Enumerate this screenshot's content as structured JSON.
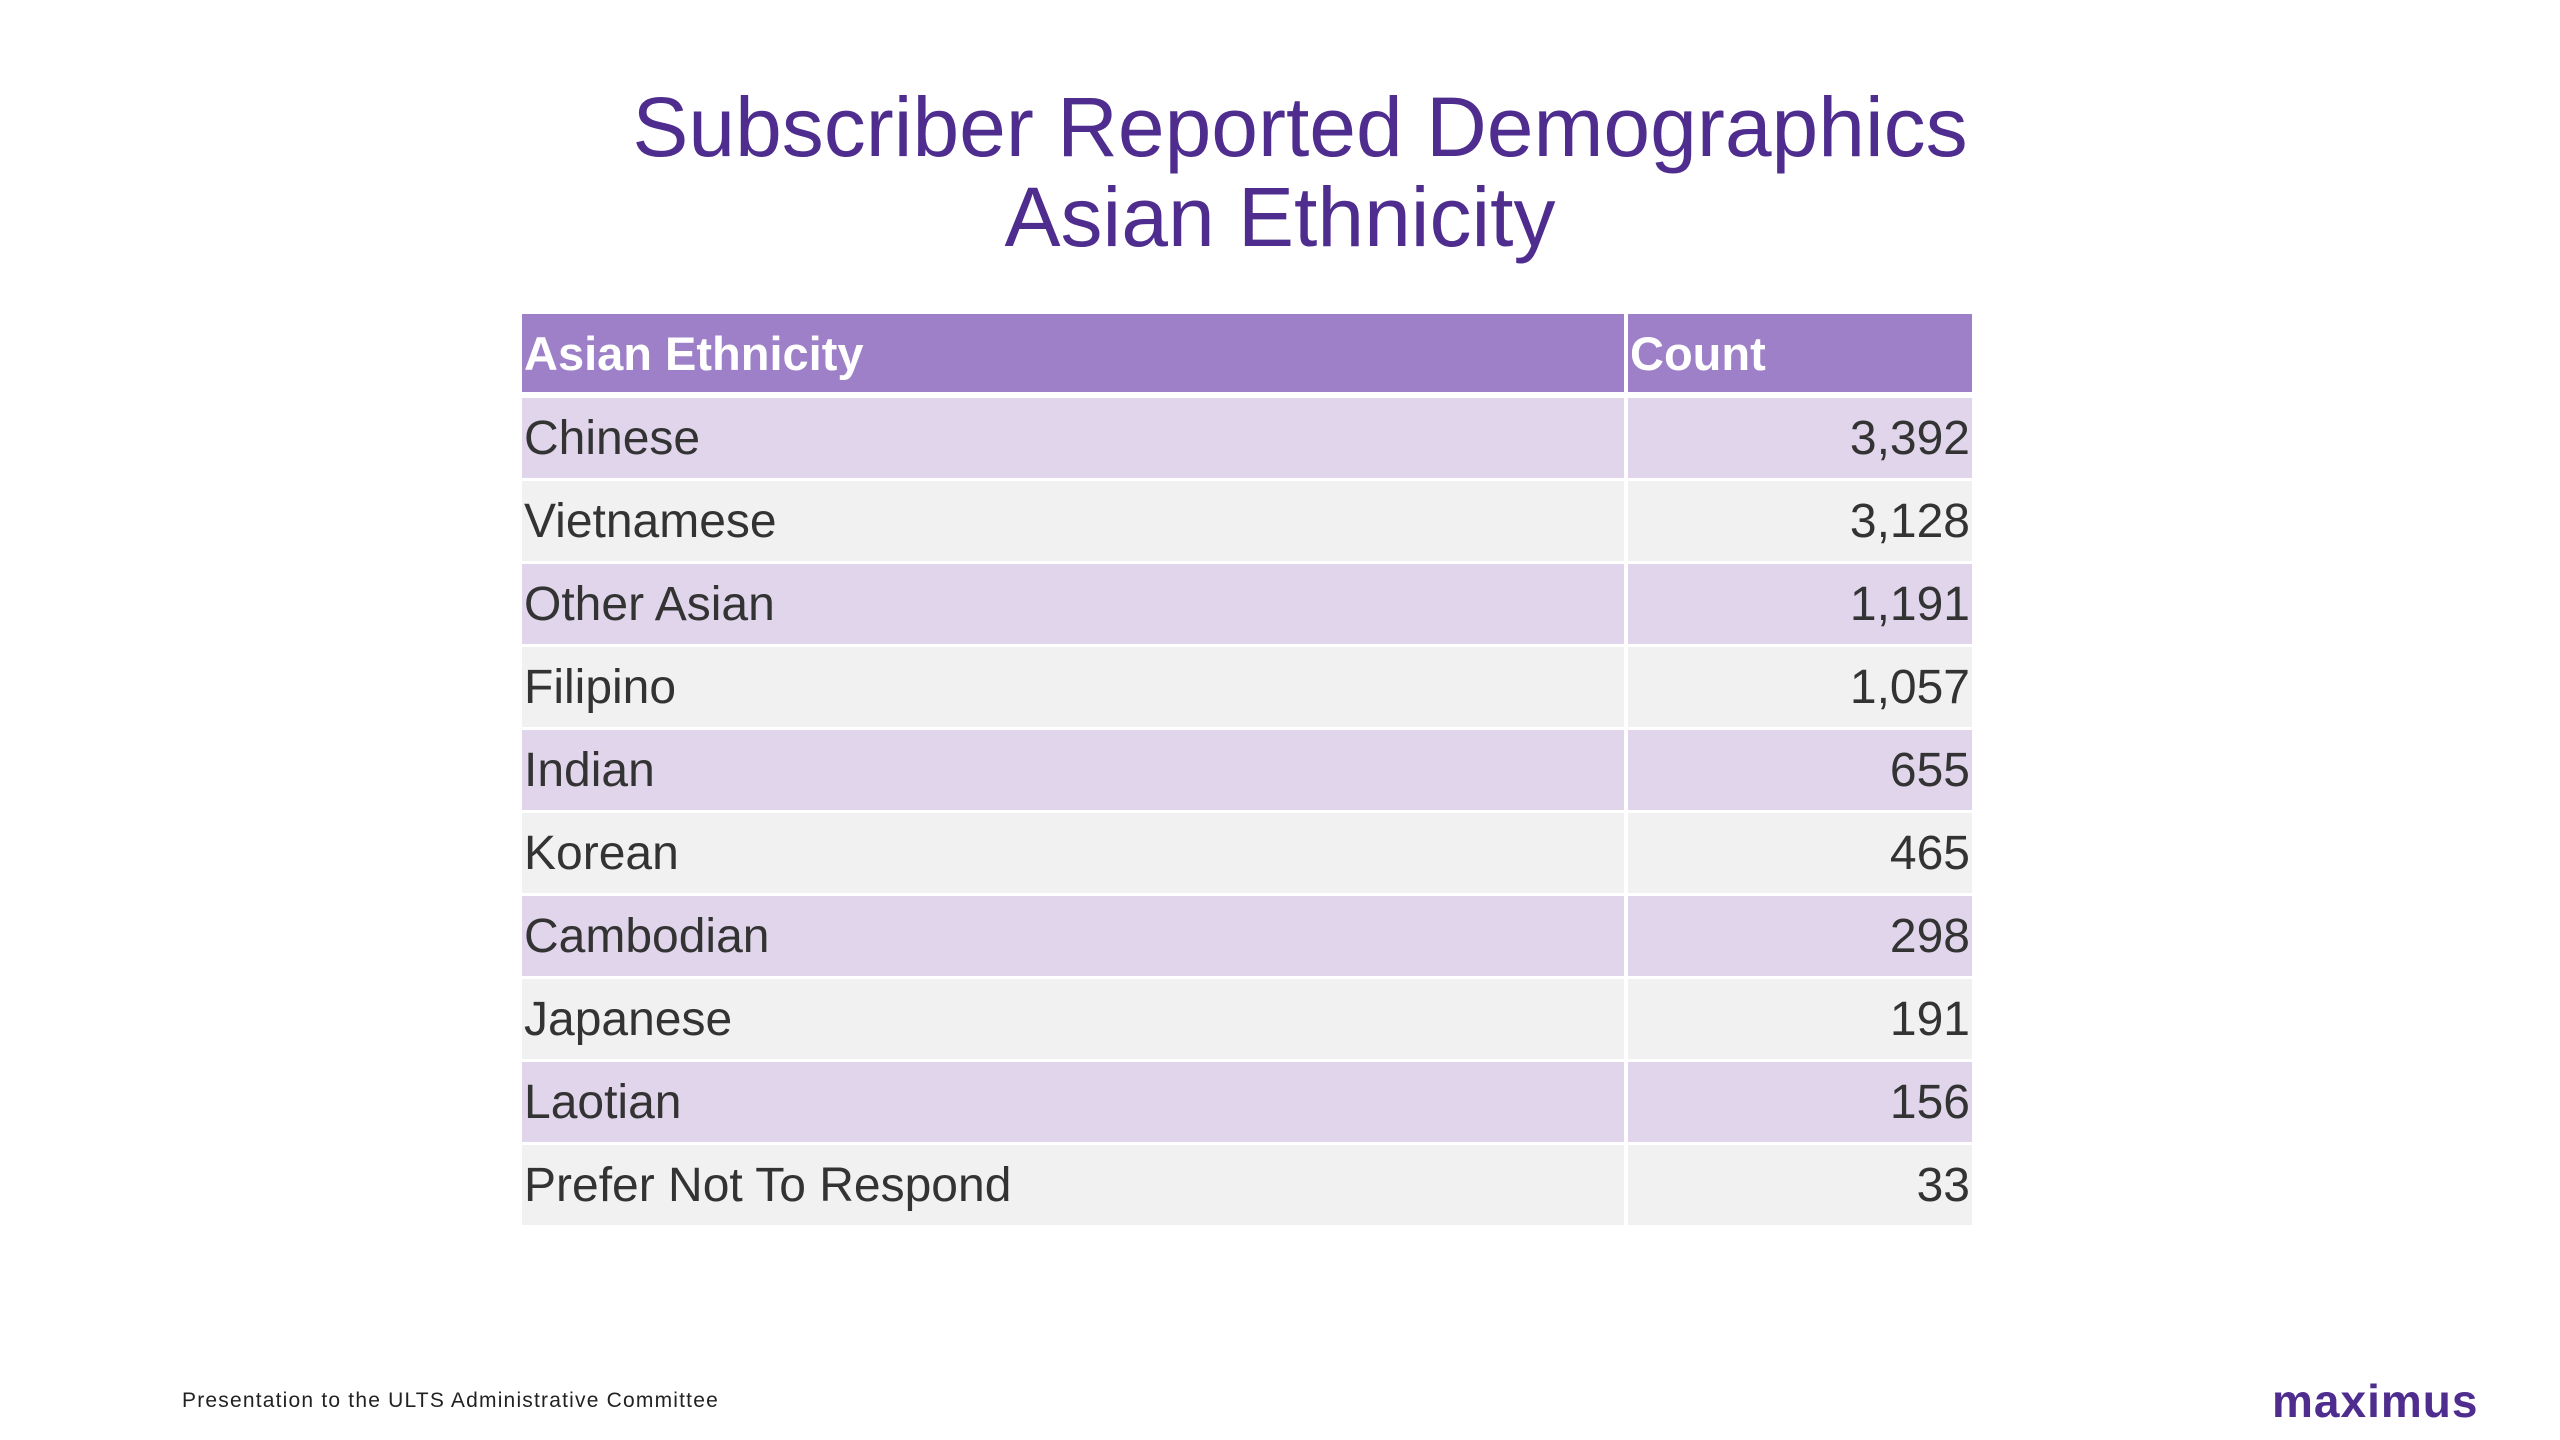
{
  "title": {
    "line1": "Subscriber Reported Demographics",
    "line2": "Asian Ethnicity"
  },
  "table": {
    "headers": [
      "Asian Ethnicity",
      "Count"
    ],
    "rows": [
      {
        "name": "Chinese",
        "count": "3,392"
      },
      {
        "name": "Vietnamese",
        "count": "3,128"
      },
      {
        "name": "Other Asian",
        "count": "1,191"
      },
      {
        "name": "Filipino",
        "count": "1,057"
      },
      {
        "name": "Indian",
        "count": "655"
      },
      {
        "name": "Korean",
        "count": "465"
      },
      {
        "name": "Cambodian",
        "count": "298"
      },
      {
        "name": "Japanese",
        "count": "191"
      },
      {
        "name": "Laotian",
        "count": "156"
      },
      {
        "name": "Prefer Not To Respond",
        "count": "33"
      }
    ]
  },
  "footer": {
    "text": "Presentation to the ULTS Administrative Committee",
    "logo": "maximus"
  },
  "colors": {
    "title": "#4f2d8f",
    "header_bg": "#9d80c8",
    "row_odd": "#e0d5eb",
    "row_even": "#f1f1f1"
  }
}
